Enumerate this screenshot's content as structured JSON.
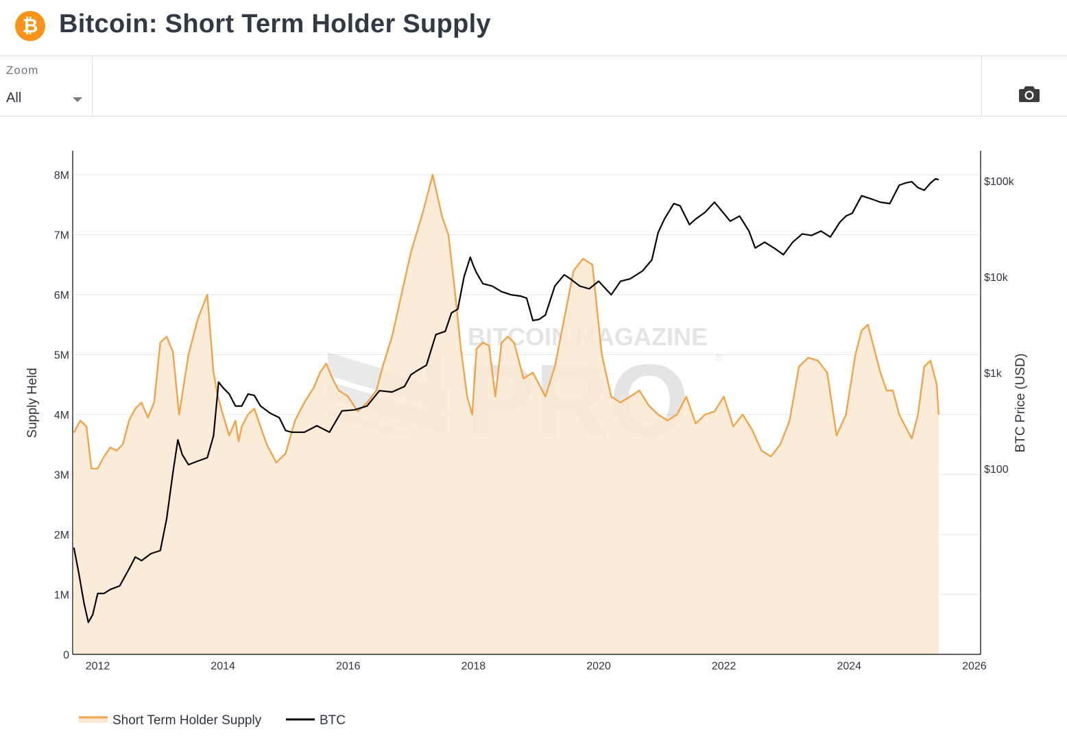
{
  "header": {
    "title": "Bitcoin: Short Term Holder Supply",
    "logo_icon": "bitcoin-logo-icon"
  },
  "toolbar": {
    "zoom_label": "Zoom",
    "zoom_value": "All",
    "camera_icon": "camera-icon"
  },
  "watermark": {
    "line1": "BITCOIN MAGAZINE",
    "line2": "PRO",
    "mark": "®"
  },
  "chart_data": {
    "type": "area",
    "title": "",
    "xlabel": "",
    "ylabel": "Supply Held",
    "y2label": "BTC Price (USD)",
    "y2scale": "log",
    "xlim": [
      2011.6,
      2026.1
    ],
    "ylim": [
      0,
      8400000
    ],
    "y2lim": [
      1,
      200000
    ],
    "x_ticks": [
      "2012",
      "2014",
      "2016",
      "2018",
      "2020",
      "2022",
      "2024",
      "2026"
    ],
    "y_ticks": [
      "0",
      "1M",
      "2M",
      "3M",
      "4M",
      "5M",
      "6M",
      "7M",
      "8M"
    ],
    "y2_ticks": [
      "$100",
      "$1k",
      "$10k",
      "$100k"
    ],
    "grid": true,
    "legend_position": "bottom-left",
    "colors": {
      "sth": "#f0a34a",
      "sth_fill": "#fae8d2",
      "btc": "#000000",
      "grid": "#e6e6e6"
    },
    "series": [
      {
        "name": "Short Term Holder Supply",
        "x": [
          2011.62,
          2011.72,
          2011.82,
          2011.9,
          2012.0,
          2012.1,
          2012.2,
          2012.3,
          2012.4,
          2012.5,
          2012.6,
          2012.7,
          2012.8,
          2012.9,
          2013.0,
          2013.1,
          2013.2,
          2013.3,
          2013.45,
          2013.6,
          2013.75,
          2013.85,
          2013.92,
          2014.0,
          2014.1,
          2014.2,
          2014.25,
          2014.3,
          2014.4,
          2014.5,
          2014.6,
          2014.7,
          2014.85,
          2015.0,
          2015.15,
          2015.3,
          2015.45,
          2015.55,
          2015.65,
          2015.75,
          2015.85,
          2016.0,
          2016.15,
          2016.3,
          2016.45,
          2016.55,
          2016.7,
          2016.85,
          2017.0,
          2017.2,
          2017.35,
          2017.5,
          2017.6,
          2017.7,
          2017.8,
          2017.9,
          2017.98,
          2018.05,
          2018.15,
          2018.25,
          2018.35,
          2018.45,
          2018.55,
          2018.65,
          2018.8,
          2018.95,
          2019.05,
          2019.15,
          2019.3,
          2019.45,
          2019.6,
          2019.75,
          2019.9,
          2020.05,
          2020.2,
          2020.35,
          2020.5,
          2020.65,
          2020.8,
          2020.95,
          2021.1,
          2021.25,
          2021.4,
          2021.55,
          2021.7,
          2021.85,
          2022.0,
          2022.15,
          2022.3,
          2022.45,
          2022.6,
          2022.75,
          2022.9,
          2023.05,
          2023.2,
          2023.35,
          2023.5,
          2023.65,
          2023.8,
          2023.95,
          2024.1,
          2024.2,
          2024.3,
          2024.4,
          2024.5,
          2024.6,
          2024.7,
          2024.8,
          2024.9,
          2025.0,
          2025.1,
          2025.2,
          2025.3,
          2025.4,
          2025.43
        ],
        "values": [
          3700000,
          3900000,
          3800000,
          3100000,
          3100000,
          3300000,
          3450000,
          3400000,
          3500000,
          3900000,
          4100000,
          4200000,
          3950000,
          4200000,
          5200000,
          5300000,
          5050000,
          4000000,
          5000000,
          5600000,
          6000000,
          4700000,
          4300000,
          4000000,
          3650000,
          3900000,
          3550000,
          3800000,
          4000000,
          4100000,
          3800000,
          3500000,
          3200000,
          3350000,
          3900000,
          4200000,
          4450000,
          4700000,
          4850000,
          4600000,
          4400000,
          4300000,
          4050000,
          4200000,
          4400000,
          4800000,
          5300000,
          6000000,
          6700000,
          7400000,
          8000000,
          7300000,
          7000000,
          6100000,
          5100000,
          4300000,
          4000000,
          5100000,
          5200000,
          5150000,
          4300000,
          5200000,
          5300000,
          5200000,
          4600000,
          4700000,
          4500000,
          4300000,
          4800000,
          5600000,
          6400000,
          6600000,
          6500000,
          5000000,
          4300000,
          4200000,
          4300000,
          4400000,
          4150000,
          4000000,
          3900000,
          4000000,
          4300000,
          3850000,
          4000000,
          4050000,
          4300000,
          3800000,
          4000000,
          3750000,
          3400000,
          3300000,
          3500000,
          3900000,
          4800000,
          4950000,
          4900000,
          4700000,
          3650000,
          4000000,
          5000000,
          5400000,
          5500000,
          5100000,
          4700000,
          4400000,
          4400000,
          4000000,
          3800000,
          3600000,
          4000000,
          4800000,
          4900000,
          4500000,
          4000000
        ]
      },
      {
        "name": "BTC",
        "x": [
          2011.62,
          2011.7,
          2011.78,
          2011.85,
          2011.92,
          2012.0,
          2012.1,
          2012.2,
          2012.35,
          2012.5,
          2012.6,
          2012.7,
          2012.85,
          2013.0,
          2013.1,
          2013.2,
          2013.28,
          2013.35,
          2013.45,
          2013.6,
          2013.75,
          2013.85,
          2013.93,
          2014.0,
          2014.1,
          2014.2,
          2014.3,
          2014.4,
          2014.5,
          2014.6,
          2014.75,
          2014.9,
          2015.0,
          2015.1,
          2015.3,
          2015.5,
          2015.7,
          2015.9,
          2016.1,
          2016.3,
          2016.5,
          2016.7,
          2016.9,
          2017.0,
          2017.1,
          2017.25,
          2017.4,
          2017.55,
          2017.65,
          2017.75,
          2017.85,
          2017.95,
          2018.0,
          2018.05,
          2018.15,
          2018.3,
          2018.45,
          2018.6,
          2018.75,
          2018.85,
          2018.95,
          2019.05,
          2019.15,
          2019.3,
          2019.45,
          2019.55,
          2019.7,
          2019.85,
          2020.0,
          2020.2,
          2020.35,
          2020.5,
          2020.7,
          2020.85,
          2020.95,
          2021.05,
          2021.2,
          2021.3,
          2021.45,
          2021.55,
          2021.7,
          2021.85,
          2021.95,
          2022.1,
          2022.25,
          2022.4,
          2022.5,
          2022.65,
          2022.8,
          2022.95,
          2023.1,
          2023.25,
          2023.4,
          2023.55,
          2023.7,
          2023.85,
          2023.95,
          2024.05,
          2024.2,
          2024.35,
          2024.5,
          2024.65,
          2024.8,
          2024.9,
          2025.0,
          2025.1,
          2025.2,
          2025.3,
          2025.38,
          2025.43
        ],
        "values": [
          15,
          8,
          4,
          2.5,
          3,
          5,
          5,
          5.5,
          6,
          9,
          12,
          11,
          13,
          14,
          30,
          90,
          200,
          140,
          110,
          120,
          130,
          220,
          800,
          700,
          600,
          450,
          450,
          600,
          580,
          450,
          380,
          340,
          250,
          240,
          240,
          280,
          240,
          400,
          410,
          450,
          650,
          630,
          720,
          950,
          1050,
          1200,
          2500,
          2700,
          4200,
          4600,
          10000,
          16000,
          13000,
          11000,
          8500,
          8000,
          7000,
          6500,
          6300,
          6000,
          3500,
          3600,
          4000,
          8000,
          10500,
          9500,
          8000,
          7500,
          9000,
          6500,
          9000,
          9500,
          11500,
          15000,
          29000,
          40000,
          58000,
          55000,
          35000,
          40000,
          47000,
          60000,
          50000,
          38000,
          43000,
          30000,
          20000,
          23000,
          20000,
          17000,
          23000,
          28000,
          27000,
          30000,
          26000,
          37000,
          43000,
          46000,
          70000,
          65000,
          60000,
          58000,
          90000,
          95000,
          98000,
          85000,
          80000,
          95000,
          105000,
          103000
        ]
      }
    ]
  }
}
